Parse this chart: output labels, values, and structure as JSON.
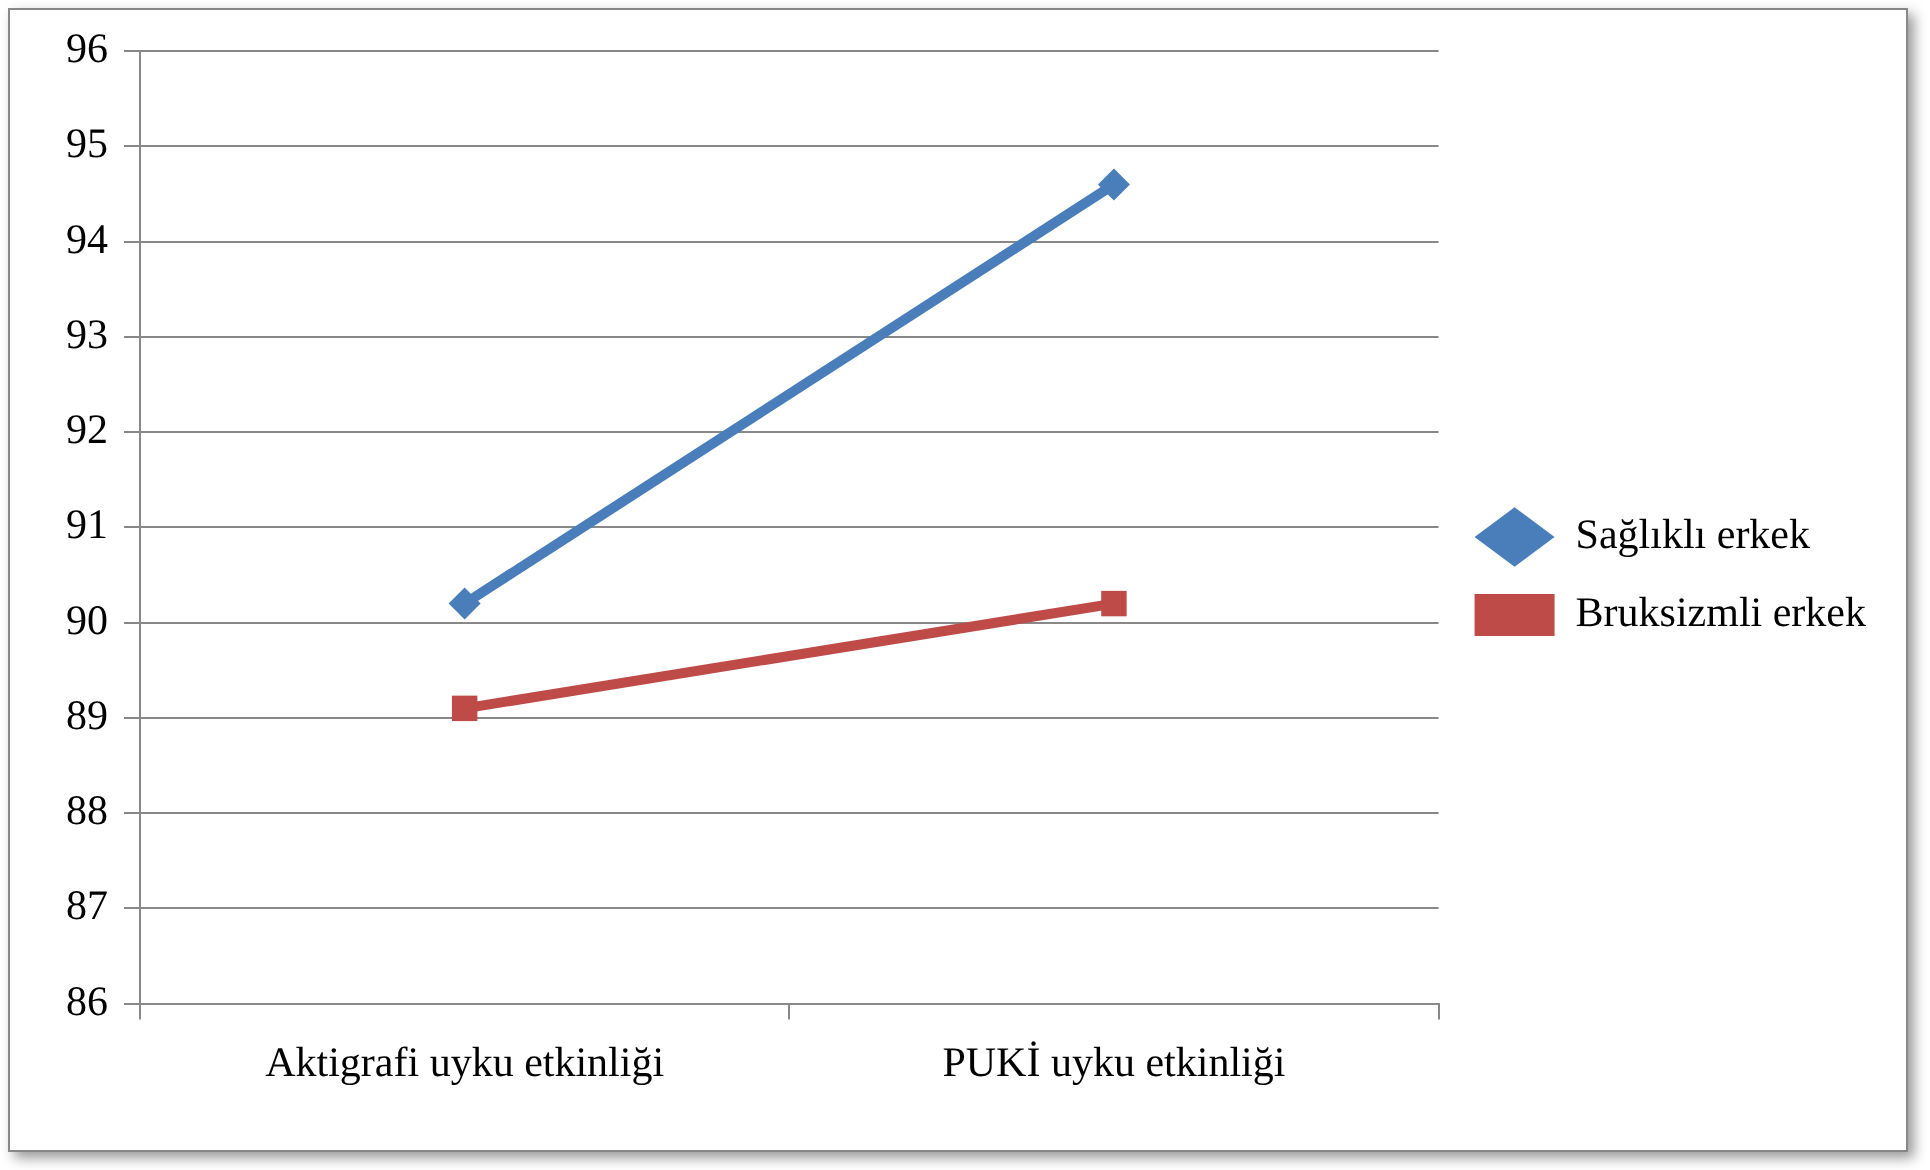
{
  "chart_data": {
    "type": "line",
    "categories": [
      "Aktigrafi uyku etkinliği",
      "PUKİ uyku etkinliği"
    ],
    "series": [
      {
        "name": "Sağlıklı erkek",
        "color": "#4a7ebb",
        "values": [
          90.2,
          94.6
        ],
        "marker": "diamond"
      },
      {
        "name": "Bruksizmli erkek",
        "color": "#be4b48",
        "values": [
          89.1,
          90.2
        ],
        "marker": "square"
      }
    ],
    "ylim": [
      86,
      96
    ],
    "yticks": [
      86,
      87,
      88,
      89,
      90,
      91,
      92,
      93,
      94,
      95,
      96
    ],
    "grid": "y",
    "legend": "right",
    "line_style": "solid"
  }
}
